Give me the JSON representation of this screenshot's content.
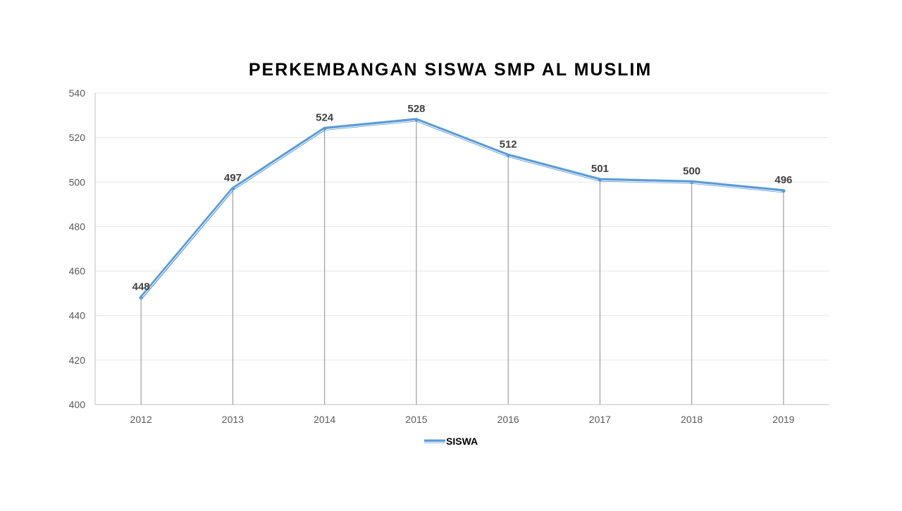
{
  "colors": {
    "series": "#5B9BD5",
    "series_highlight": "#FFFFFF",
    "gridline": "#E5E5E5",
    "axis": "#BFBFBF",
    "drop_line": "#8C8C8C"
  },
  "chart_data": {
    "type": "line",
    "title": "PERKEMBANGAN SISWA SMP AL MUSLIM",
    "xlabel": "",
    "ylabel": "",
    "categories": [
      "2012",
      "2013",
      "2014",
      "2015",
      "2016",
      "2017",
      "2018",
      "2019"
    ],
    "series": [
      {
        "name": "SISWA",
        "values": [
          448,
          497,
          524,
          528,
          512,
          501,
          500,
          496
        ]
      }
    ],
    "ylim": [
      400,
      540
    ],
    "yticks": [
      400,
      420,
      440,
      460,
      480,
      500,
      520,
      540
    ],
    "grid": true,
    "drop_lines": true,
    "data_labels": true,
    "legend_position": "bottom"
  }
}
